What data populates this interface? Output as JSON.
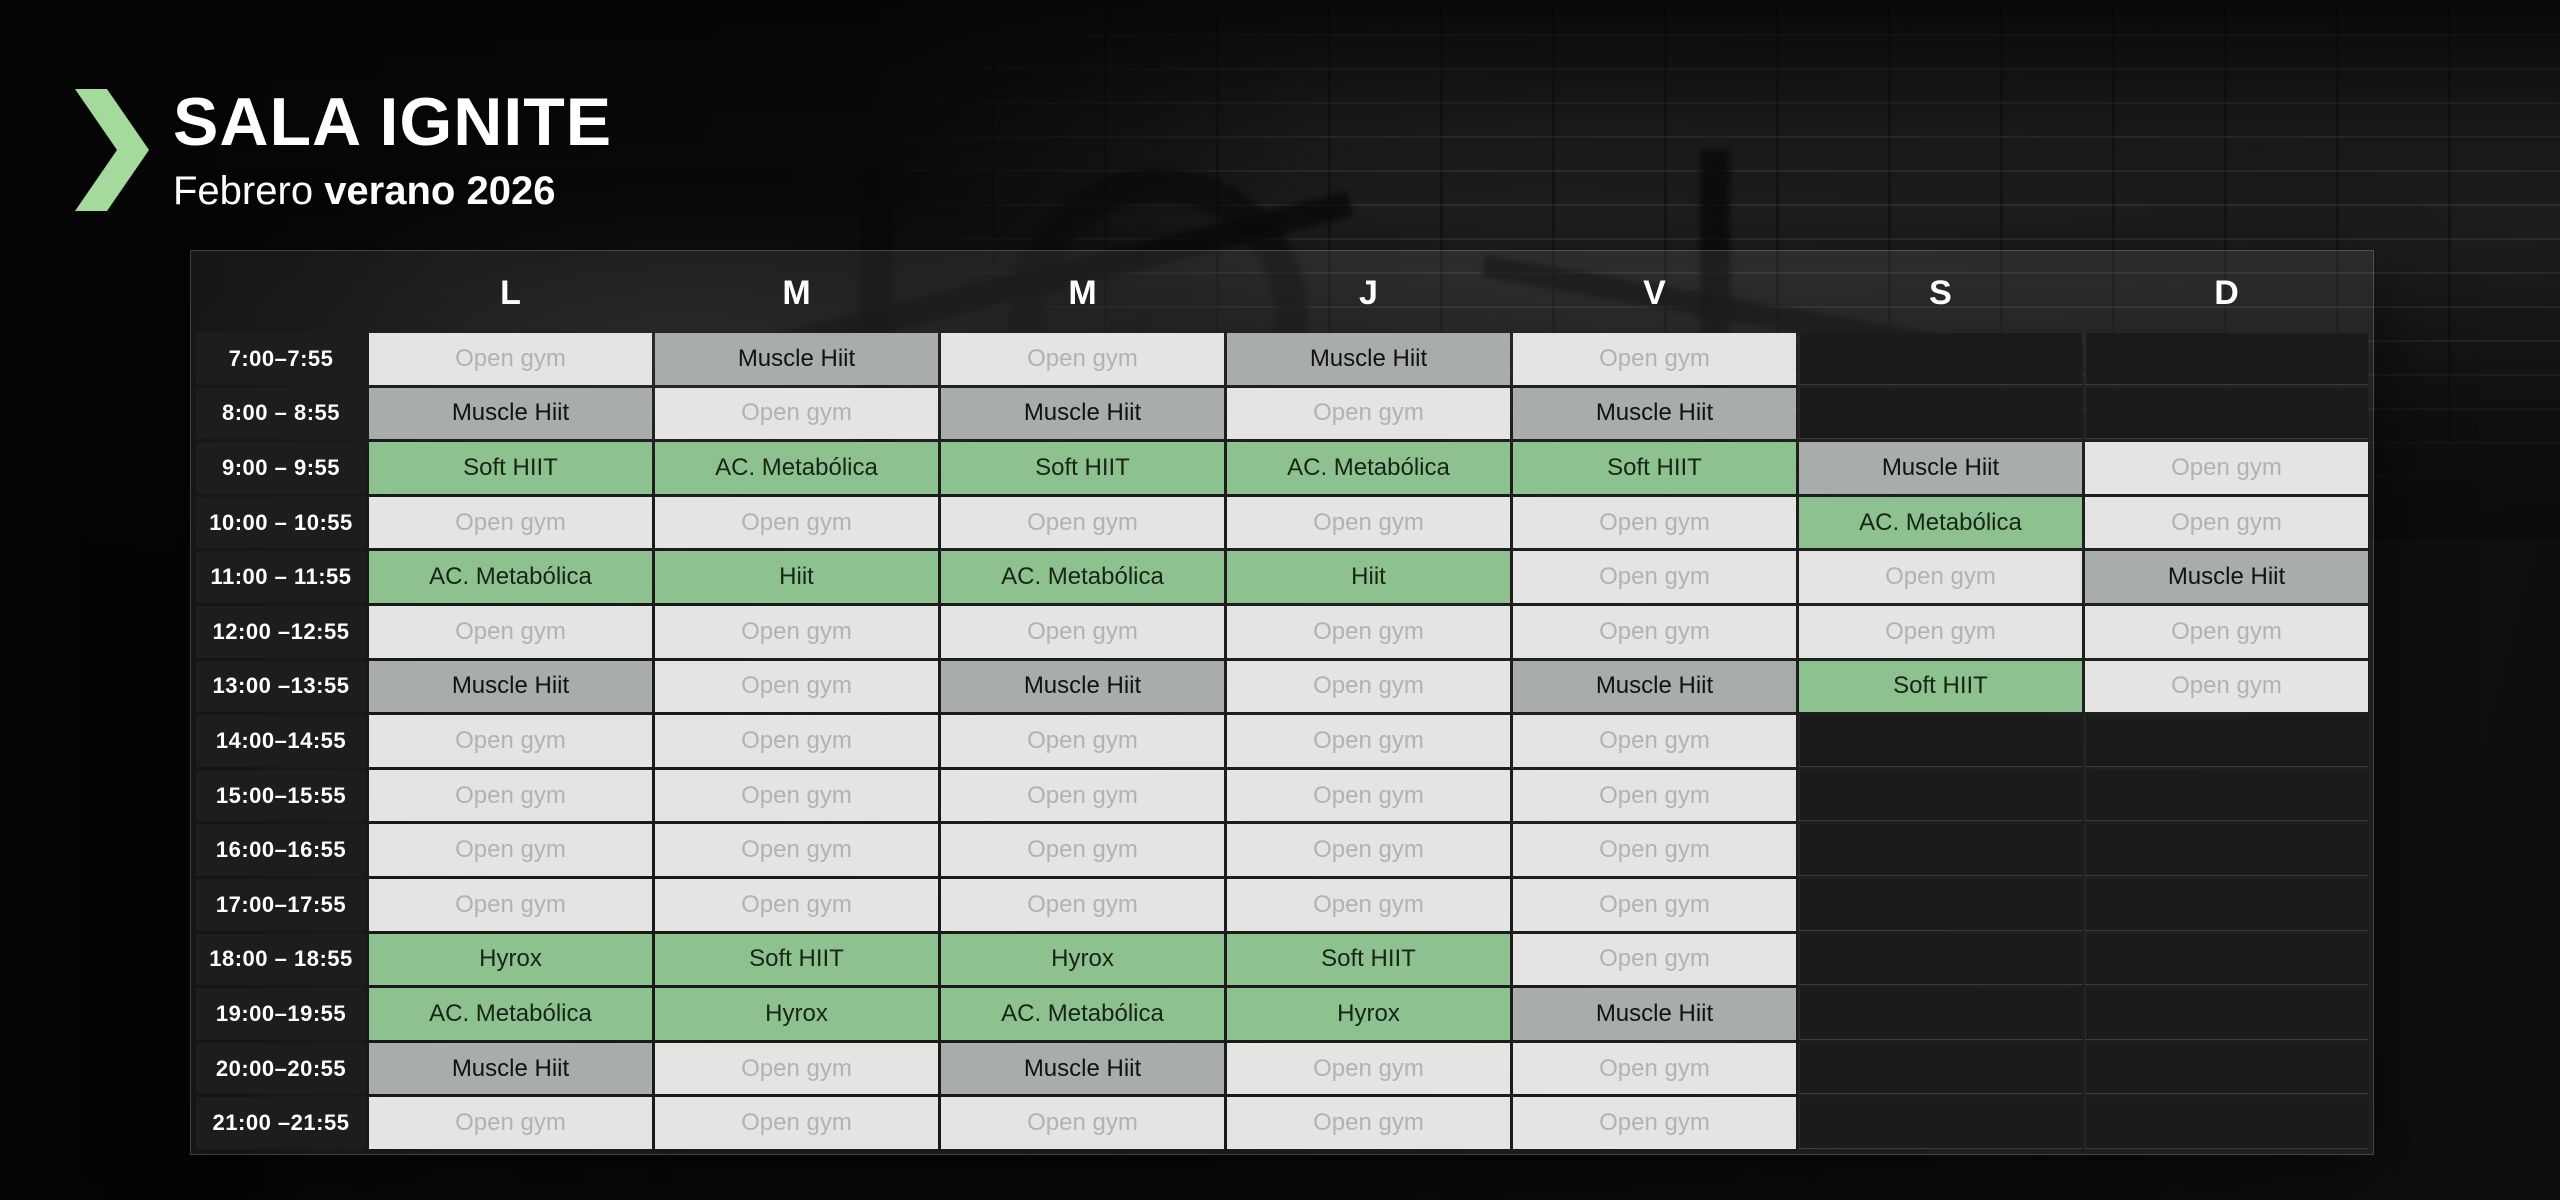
{
  "header": {
    "title": "SALA IGNITE",
    "subtitle_prefix": "Febrero",
    "subtitle_emphasis": "verano 2026"
  },
  "colors": {
    "accent_green": "#a4da9c",
    "class_green": "#8dc290",
    "class_gray": "#a8adab",
    "open_bg": "#e4e4e2",
    "open_text": "#b2b2b0",
    "dark_cell": "#1b1b1b",
    "time_cell": "#1e1e1e",
    "header_text": "#ffffff"
  },
  "schedule": {
    "day_headers": [
      "L",
      "M",
      "M",
      "J",
      "V",
      "S",
      "D"
    ],
    "rows": [
      {
        "time": "7:00–7:55",
        "cells": [
          {
            "label": "Open gym",
            "type": "open"
          },
          {
            "label": "Muscle Hiit",
            "type": "strength"
          },
          {
            "label": "Open gym",
            "type": "open"
          },
          {
            "label": "Muscle Hiit",
            "type": "strength"
          },
          {
            "label": "Open gym",
            "type": "open"
          },
          {
            "label": "",
            "type": "none"
          },
          {
            "label": "",
            "type": "none"
          }
        ]
      },
      {
        "time": "8:00 – 8:55",
        "cells": [
          {
            "label": "Muscle Hiit",
            "type": "strength"
          },
          {
            "label": "Open gym",
            "type": "open"
          },
          {
            "label": "Muscle Hiit",
            "type": "strength"
          },
          {
            "label": "Open gym",
            "type": "open"
          },
          {
            "label": "Muscle Hiit",
            "type": "strength"
          },
          {
            "label": "",
            "type": "none"
          },
          {
            "label": "",
            "type": "none"
          }
        ]
      },
      {
        "time": "9:00 – 9:55",
        "cells": [
          {
            "label": "Soft HIIT",
            "type": "class"
          },
          {
            "label": "AC. Metabólica",
            "type": "class"
          },
          {
            "label": "Soft HIIT",
            "type": "class"
          },
          {
            "label": "AC. Metabólica",
            "type": "class"
          },
          {
            "label": "Soft HIIT",
            "type": "class"
          },
          {
            "label": "Muscle Hiit",
            "type": "strength"
          },
          {
            "label": "Open gym",
            "type": "open"
          }
        ]
      },
      {
        "time": "10:00 – 10:55",
        "cells": [
          {
            "label": "Open gym",
            "type": "open"
          },
          {
            "label": "Open gym",
            "type": "open"
          },
          {
            "label": "Open gym",
            "type": "open"
          },
          {
            "label": "Open gym",
            "type": "open"
          },
          {
            "label": "Open gym",
            "type": "open"
          },
          {
            "label": "AC. Metabólica",
            "type": "class"
          },
          {
            "label": "Open gym",
            "type": "open"
          }
        ]
      },
      {
        "time": "11:00 – 11:55",
        "cells": [
          {
            "label": "AC. Metabólica",
            "type": "class"
          },
          {
            "label": "Hiit",
            "type": "class"
          },
          {
            "label": "AC. Metabólica",
            "type": "class"
          },
          {
            "label": "Hiit",
            "type": "class"
          },
          {
            "label": "Open gym",
            "type": "open"
          },
          {
            "label": "Open gym",
            "type": "open"
          },
          {
            "label": "Muscle Hiit",
            "type": "strength"
          }
        ]
      },
      {
        "time": "12:00 –12:55",
        "cells": [
          {
            "label": "Open gym",
            "type": "open"
          },
          {
            "label": "Open gym",
            "type": "open"
          },
          {
            "label": "Open gym",
            "type": "open"
          },
          {
            "label": "Open gym",
            "type": "open"
          },
          {
            "label": "Open gym",
            "type": "open"
          },
          {
            "label": "Open gym",
            "type": "open"
          },
          {
            "label": "Open gym",
            "type": "open"
          }
        ]
      },
      {
        "time": "13:00 –13:55",
        "cells": [
          {
            "label": "Muscle Hiit",
            "type": "strength"
          },
          {
            "label": "Open gym",
            "type": "open"
          },
          {
            "label": "Muscle Hiit",
            "type": "strength"
          },
          {
            "label": "Open gym",
            "type": "open"
          },
          {
            "label": "Muscle Hiit",
            "type": "strength"
          },
          {
            "label": "Soft HIIT",
            "type": "class"
          },
          {
            "label": "Open gym",
            "type": "open"
          }
        ]
      },
      {
        "time": "14:00–14:55",
        "cells": [
          {
            "label": "Open gym",
            "type": "open"
          },
          {
            "label": "Open gym",
            "type": "open"
          },
          {
            "label": "Open gym",
            "type": "open"
          },
          {
            "label": "Open gym",
            "type": "open"
          },
          {
            "label": "Open gym",
            "type": "open"
          },
          {
            "label": "",
            "type": "none"
          },
          {
            "label": "",
            "type": "none"
          }
        ]
      },
      {
        "time": "15:00–15:55",
        "cells": [
          {
            "label": "Open gym",
            "type": "open"
          },
          {
            "label": "Open gym",
            "type": "open"
          },
          {
            "label": "Open gym",
            "type": "open"
          },
          {
            "label": "Open gym",
            "type": "open"
          },
          {
            "label": "Open gym",
            "type": "open"
          },
          {
            "label": "",
            "type": "none"
          },
          {
            "label": "",
            "type": "none"
          }
        ]
      },
      {
        "time": "16:00–16:55",
        "cells": [
          {
            "label": "Open gym",
            "type": "open"
          },
          {
            "label": "Open gym",
            "type": "open"
          },
          {
            "label": "Open gym",
            "type": "open"
          },
          {
            "label": "Open gym",
            "type": "open"
          },
          {
            "label": "Open gym",
            "type": "open"
          },
          {
            "label": "",
            "type": "none"
          },
          {
            "label": "",
            "type": "none"
          }
        ]
      },
      {
        "time": "17:00–17:55",
        "cells": [
          {
            "label": "Open gym",
            "type": "open"
          },
          {
            "label": "Open gym",
            "type": "open"
          },
          {
            "label": "Open gym",
            "type": "open"
          },
          {
            "label": "Open gym",
            "type": "open"
          },
          {
            "label": "Open gym",
            "type": "open"
          },
          {
            "label": "",
            "type": "none"
          },
          {
            "label": "",
            "type": "none"
          }
        ]
      },
      {
        "time": "18:00 – 18:55",
        "cells": [
          {
            "label": "Hyrox",
            "type": "class"
          },
          {
            "label": "Soft HIIT",
            "type": "class"
          },
          {
            "label": "Hyrox",
            "type": "class"
          },
          {
            "label": "Soft HIIT",
            "type": "class"
          },
          {
            "label": "Open gym",
            "type": "open"
          },
          {
            "label": "",
            "type": "none"
          },
          {
            "label": "",
            "type": "none"
          }
        ]
      },
      {
        "time": "19:00–19:55",
        "cells": [
          {
            "label": "AC. Metabólica",
            "type": "class"
          },
          {
            "label": "Hyrox",
            "type": "class"
          },
          {
            "label": "AC. Metabólica",
            "type": "class"
          },
          {
            "label": "Hyrox",
            "type": "class"
          },
          {
            "label": "Muscle Hiit",
            "type": "strength"
          },
          {
            "label": "",
            "type": "none"
          },
          {
            "label": "",
            "type": "none"
          }
        ]
      },
      {
        "time": "20:00–20:55",
        "cells": [
          {
            "label": "Muscle Hiit",
            "type": "strength"
          },
          {
            "label": "Open gym",
            "type": "open"
          },
          {
            "label": "Muscle Hiit",
            "type": "strength"
          },
          {
            "label": "Open gym",
            "type": "open"
          },
          {
            "label": "Open gym",
            "type": "open"
          },
          {
            "label": "",
            "type": "none"
          },
          {
            "label": "",
            "type": "none"
          }
        ]
      },
      {
        "time": "21:00 –21:55",
        "cells": [
          {
            "label": "Open gym",
            "type": "open"
          },
          {
            "label": "Open gym",
            "type": "open"
          },
          {
            "label": "Open gym",
            "type": "open"
          },
          {
            "label": "Open gym",
            "type": "open"
          },
          {
            "label": "Open gym",
            "type": "open"
          },
          {
            "label": "",
            "type": "none"
          },
          {
            "label": "",
            "type": "none"
          }
        ]
      }
    ]
  }
}
